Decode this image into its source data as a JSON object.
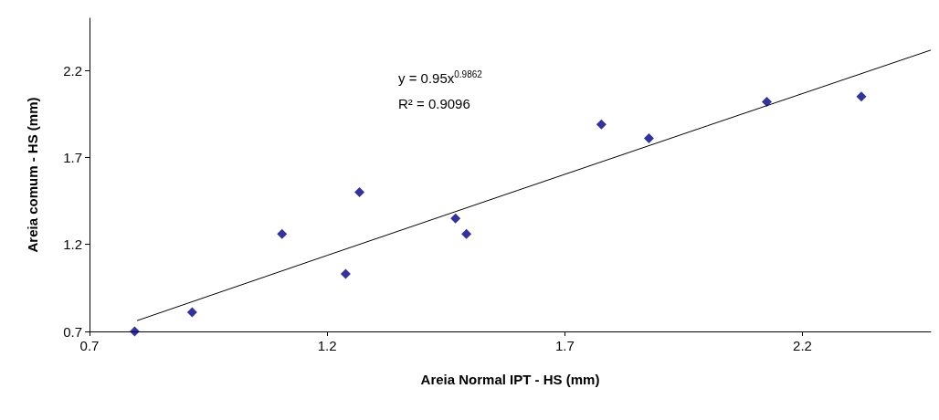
{
  "chart_data": {
    "type": "scatter",
    "xlabel": "Areia Normal IPT - HS (mm)",
    "ylabel": "Areia comum - HS (mm)",
    "xlim": [
      0.7,
      2.47
    ],
    "ylim": [
      0.7,
      2.5
    ],
    "xticks": [
      0.7,
      1.2,
      1.7,
      2.2
    ],
    "yticks": [
      0.7,
      1.2,
      1.7,
      2.2
    ],
    "grid": false,
    "marker": "diamond",
    "annotations": [
      "y = 0.95x$^{0.9862}$",
      "R² = 0.9096"
    ],
    "series": [
      {
        "color": "#000080",
        "x": [
          0.795,
          0.916,
          1.105,
          1.239,
          1.268,
          1.47,
          1.493,
          1.777,
          1.877,
          2.125,
          2.324
        ],
        "values": [
          0.7,
          0.81,
          1.26,
          1.03,
          1.5,
          1.35,
          1.26,
          1.89,
          1.81,
          2.02,
          2.05
        ]
      },
      {
        "type": "line",
        "color": "#000000",
        "marker": "none",
        "x": [
          0.8,
          1.2,
          1.6,
          2.0,
          2.47
        ],
        "values": [
          0.762,
          1.137,
          1.51,
          1.882,
          2.317
        ]
      }
    ]
  }
}
